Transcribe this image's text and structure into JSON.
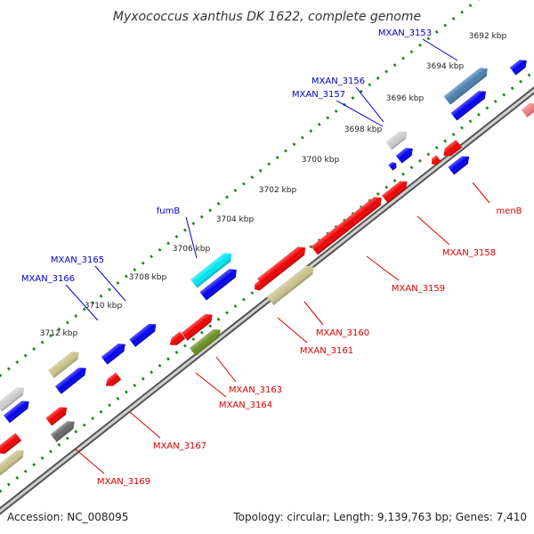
{
  "title": "Myxococcus xanthus DK 1622, complete genome",
  "footer": {
    "accession": "Accession: NC_008095",
    "summary": "Topology: circular; Length: 9,139,763 bp; Genes: 7,410"
  },
  "scale_labels": [
    "3692 kbp",
    "3694 kbp",
    "3696 kbp",
    "3698 kbp",
    "3700 kbp",
    "3702 kbp",
    "3704 kbp",
    "3706 kbp",
    "3708 kbp",
    "3710 kbp",
    "3712 kbp"
  ],
  "gene_labels": {
    "forward": [
      "MXAN_3153",
      "MXAN_3156",
      "MXAN_3157",
      "fumB",
      "MXAN_3165",
      "MXAN_3166"
    ],
    "reverse": [
      "menB",
      "MXAN_3158",
      "MXAN_3159",
      "MXAN_3160",
      "MXAN_3161",
      "MXAN_3163",
      "MXAN_3164",
      "MXAN_3167",
      "MXAN_3169"
    ]
  },
  "colors": {
    "forward_label": "#0000cc",
    "reverse_label": "#dd0000",
    "scale_dots": "#118811",
    "backbone": "#888888",
    "blue": "#0000ee",
    "red": "#ee0000",
    "steelblue": "#4a7fb0",
    "cyan": "#00e5ee",
    "khaki": "#c8c28a",
    "olive": "#6b8e23",
    "lightgray": "#cccccc",
    "darkgray": "#666666",
    "pink": "#f08080"
  }
}
